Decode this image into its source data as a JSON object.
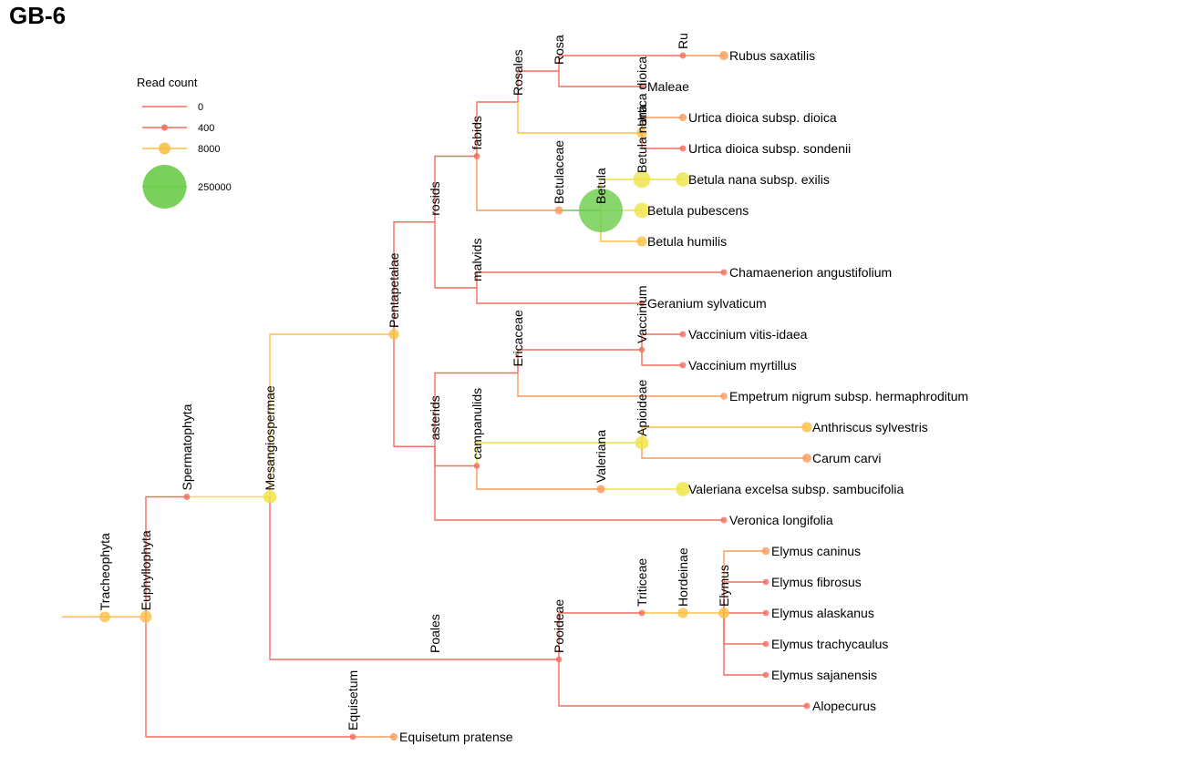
{
  "title": "GB-6",
  "legend": {
    "title": "Read count",
    "entries": [
      {
        "label": "0",
        "count": 0
      },
      {
        "label": "400",
        "count": 400
      },
      {
        "label": "8000",
        "count": 8000
      },
      {
        "label": "250000",
        "count": 250000
      }
    ]
  },
  "colors": {
    "low": "#f46d5d",
    "mid1": "#f79a5a",
    "mid2": "#fbbf45",
    "high_yellow": "#f0e442",
    "high_green": "#6acc4a"
  },
  "nodes": [
    {
      "id": "root",
      "name": "",
      "parent": null,
      "count": 0
    },
    {
      "id": "Tracheophyta",
      "name": "Tracheophyta",
      "parent": "root",
      "count": 6000
    },
    {
      "id": "Euphyllophyta",
      "name": "Euphyllophyta",
      "parent": "Tracheophyta",
      "count": 8000
    },
    {
      "id": "Spermatophyta",
      "name": "Spermatophyta",
      "parent": "Euphyllophyta",
      "count": 400
    },
    {
      "id": "Mesangiospermae",
      "name": "Mesangiospermae",
      "parent": "Spermatophyta",
      "count": 12000
    },
    {
      "id": "Pentapetalae",
      "name": "Pentapetalae",
      "parent": "Mesangiospermae",
      "count": 5000
    },
    {
      "id": "rosids",
      "name": "rosids",
      "parent": "Pentapetalae",
      "count": 0
    },
    {
      "id": "fabids",
      "name": "fabids",
      "parent": "rosids",
      "count": 400
    },
    {
      "id": "Rosales",
      "name": "Rosales",
      "parent": "fabids",
      "count": 0
    },
    {
      "id": "Rosa",
      "name": "Rosa",
      "parent": "Rosales",
      "count": 0
    },
    {
      "id": "Ru",
      "name": "Ru",
      "parent": "Rosa",
      "count": 400
    },
    {
      "id": "Rubus saxatilis",
      "name": "Rubus saxatilis",
      "parent": "Ru",
      "count": 3000
    },
    {
      "id": "Maleae",
      "name": "Maleae",
      "parent": "Rosa",
      "count": 300
    },
    {
      "id": "Urtica dioica",
      "name": "Urtica dioica",
      "parent": "Rosales",
      "count": 5000
    },
    {
      "id": "Urtica dioica subsp. dioica",
      "name": "Urtica dioica subsp. dioica",
      "parent": "Urtica dioica",
      "count": 1200
    },
    {
      "id": "Urtica dioica subsp. sondenii",
      "name": "Urtica dioica subsp. sondenii",
      "parent": "Urtica dioica",
      "count": 400
    },
    {
      "id": "Betulaceae",
      "name": "Betulaceae",
      "parent": "fabids",
      "count": 2000
    },
    {
      "id": "Betula",
      "name": "Betula",
      "parent": "Betulaceae",
      "count": 250000
    },
    {
      "id": "Betula nana",
      "name": "Betula nana",
      "parent": "Betula",
      "count": 25000
    },
    {
      "id": "Betula nana subsp. exilis",
      "name": "Betula nana subsp. exilis",
      "parent": "Betula nana",
      "count": 15000
    },
    {
      "id": "Betula pubescens",
      "name": "Betula pubescens",
      "parent": "Betula",
      "count": 18000
    },
    {
      "id": "Betula humilis",
      "name": "Betula humilis",
      "parent": "Betula",
      "count": 5000
    },
    {
      "id": "malvids",
      "name": "malvids",
      "parent": "rosids",
      "count": 0
    },
    {
      "id": "Chamaenerion angustifolium",
      "name": "Chamaenerion angustifolium",
      "parent": "malvids",
      "count": 500
    },
    {
      "id": "Geranium sylvaticum",
      "name": "Geranium sylvaticum",
      "parent": "malvids",
      "count": 300
    },
    {
      "id": "asterids",
      "name": "asterids",
      "parent": "Pentapetalae",
      "count": 0
    },
    {
      "id": "Ericaceae",
      "name": "Ericaceae",
      "parent": "asterids",
      "count": 0
    },
    {
      "id": "Vaccinium",
      "name": "Vaccinium",
      "parent": "Ericaceae",
      "count": 200
    },
    {
      "id": "Vaccinium vitis-idaea",
      "name": "Vaccinium vitis-idaea",
      "parent": "Vaccinium",
      "count": 400
    },
    {
      "id": "Vaccinium myrtillus",
      "name": "Vaccinium myrtillus",
      "parent": "Vaccinium",
      "count": 400
    },
    {
      "id": "Empetrum nigrum subsp. hermaphroditum",
      "name": "Empetrum nigrum subsp. hermaphroditum",
      "parent": "Ericaceae",
      "count": 800
    },
    {
      "id": "campanulids",
      "name": "campanulids",
      "parent": "asterids",
      "count": 300
    },
    {
      "id": "Apioideae",
      "name": "Apioideae",
      "parent": "campanulids",
      "count": 12000
    },
    {
      "id": "Anthriscus sylvestris",
      "name": "Anthriscus sylvestris",
      "parent": "Apioideae",
      "count": 5000
    },
    {
      "id": "Carum carvi",
      "name": "Carum carvi",
      "parent": "Apioideae",
      "count": 3000
    },
    {
      "id": "Valeriana",
      "name": "Valeriana",
      "parent": "campanulids",
      "count": 2000
    },
    {
      "id": "Valeriana excelsa subsp. sambucifolia",
      "name": "Valeriana excelsa subsp. sambucifolia",
      "parent": "Valeriana",
      "count": 15000
    },
    {
      "id": "Veronica longifolia",
      "name": "Veronica longifolia",
      "parent": "asterids",
      "count": 500
    },
    {
      "id": "Poales",
      "name": "Poales",
      "parent": "Mesangiospermae",
      "count": 0
    },
    {
      "id": "Pooideae",
      "name": "Pooideae",
      "parent": "Poales",
      "count": 300
    },
    {
      "id": "Triticeae",
      "name": "Triticeae",
      "parent": "Pooideae",
      "count": 400
    },
    {
      "id": "Hordeinae",
      "name": "Hordeinae",
      "parent": "Triticeae",
      "count": 5000
    },
    {
      "id": "Elymus",
      "name": "Elymus",
      "parent": "Hordeinae",
      "count": 6000
    },
    {
      "id": "Elymus caninus",
      "name": "Elymus caninus",
      "parent": "Elymus",
      "count": 1500
    },
    {
      "id": "Elymus fibrosus",
      "name": "Elymus fibrosus",
      "parent": "Elymus",
      "count": 300
    },
    {
      "id": "Elymus alaskanus",
      "name": "Elymus alaskanus",
      "parent": "Elymus",
      "count": 300
    },
    {
      "id": "Elymus trachycaulus",
      "name": "Elymus trachycaulus",
      "parent": "Elymus",
      "count": 300
    },
    {
      "id": "Elymus sajanensis",
      "name": "Elymus sajanensis",
      "parent": "Elymus",
      "count": 300
    },
    {
      "id": "Alopecurus",
      "name": "Alopecurus",
      "parent": "Pooideae",
      "count": 400
    },
    {
      "id": "Equisetum",
      "name": "Equisetum",
      "parent": "Euphyllophyta",
      "count": 400
    },
    {
      "id": "Equisetum pratense",
      "name": "Equisetum pratense",
      "parent": "Equisetum",
      "count": 1200
    }
  ]
}
